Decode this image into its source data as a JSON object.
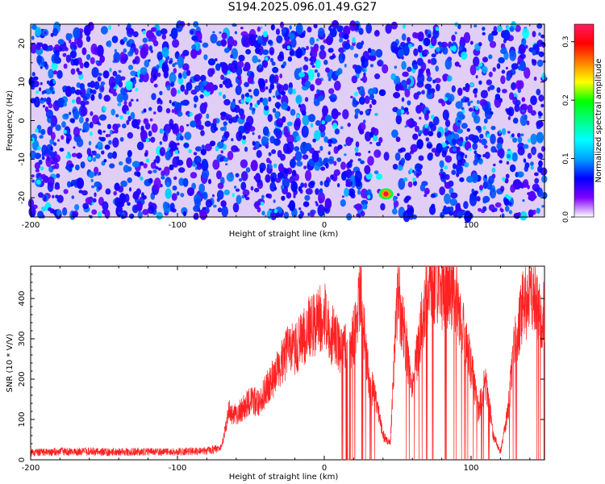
{
  "figure": {
    "title": "S194.2025.096.01.49.G27",
    "colors": {
      "snr_line": "#ff2222",
      "spectrogram_background": "#ffffff",
      "spectrogram_dominant": "#7a22e0"
    }
  },
  "chart_data": [
    {
      "type": "heatmap",
      "xlabel": "Height of straight line (km)",
      "ylabel": "Frequency (Hz)",
      "xlim": [
        -200,
        150
      ],
      "ylim": [
        -25,
        25
      ],
      "x_ticks": [
        "-200",
        "-100",
        "0",
        "100"
      ],
      "y_ticks": [
        "-20",
        "-10",
        "0",
        "10",
        "20"
      ],
      "colorbar": {
        "label": "Normalized spectral amplitude",
        "range": [
          0,
          0.33
        ],
        "ticks": [
          "0.0",
          "0.1",
          "0.2",
          "0.3"
        ],
        "colormap": [
          "#ffffff",
          "#8000ff",
          "#0000ff",
          "#00a0ff",
          "#00ffff",
          "#00ff80",
          "#00ff00",
          "#ffff00",
          "#ff8000",
          "#ff0000",
          "#ff2060"
        ]
      },
      "peak": {
        "x": 42,
        "y": -19,
        "value": 0.33
      },
      "notes_visible": "low-amplitude vertical band near x≈43 km"
    },
    {
      "type": "line",
      "xlabel": "Height of straight line (km)",
      "ylabel": "SNR (10 * V/V)",
      "xlim": [
        -200,
        150
      ],
      "ylim": [
        0,
        480
      ],
      "x_ticks": [
        "-200",
        "-100",
        "0",
        "100"
      ],
      "y_ticks": [
        "0",
        "100",
        "200",
        "300",
        "400"
      ],
      "x": [
        -200,
        -180,
        -160,
        -140,
        -120,
        -100,
        -80,
        -70,
        -65,
        -60,
        -55,
        -50,
        -45,
        -40,
        -35,
        -30,
        -25,
        -20,
        -15,
        -10,
        -5,
        0,
        5,
        10,
        15,
        20,
        25,
        30,
        35,
        40,
        45,
        50,
        55,
        60,
        65,
        70,
        75,
        80,
        85,
        90,
        95,
        100,
        105,
        110,
        115,
        120,
        125,
        130,
        135,
        140,
        145,
        150
      ],
      "y": [
        18,
        20,
        20,
        19,
        20,
        20,
        22,
        30,
        120,
        110,
        130,
        150,
        140,
        170,
        200,
        240,
        270,
        280,
        300,
        330,
        340,
        360,
        310,
        290,
        270,
        300,
        410,
        210,
        150,
        60,
        40,
        420,
        300,
        180,
        300,
        430,
        440,
        420,
        430,
        400,
        320,
        230,
        120,
        200,
        60,
        20,
        120,
        300,
        380,
        410,
        380,
        360
      ]
    }
  ]
}
